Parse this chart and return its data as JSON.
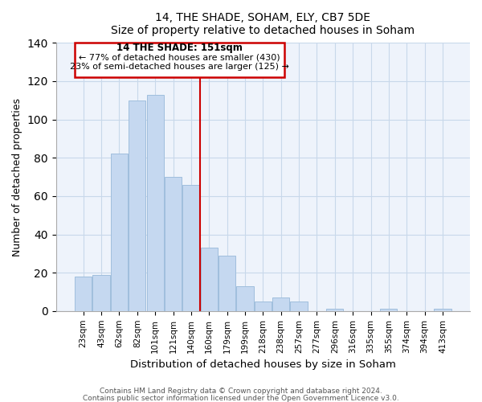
{
  "title": "14, THE SHADE, SOHAM, ELY, CB7 5DE",
  "subtitle": "Size of property relative to detached houses in Soham",
  "xlabel": "Distribution of detached houses by size in Soham",
  "ylabel": "Number of detached properties",
  "bar_labels": [
    "23sqm",
    "43sqm",
    "62sqm",
    "82sqm",
    "101sqm",
    "121sqm",
    "140sqm",
    "160sqm",
    "179sqm",
    "199sqm",
    "218sqm",
    "238sqm",
    "257sqm",
    "277sqm",
    "296sqm",
    "316sqm",
    "335sqm",
    "355sqm",
    "374sqm",
    "394sqm",
    "413sqm"
  ],
  "bar_values": [
    18,
    19,
    82,
    110,
    113,
    70,
    66,
    33,
    29,
    13,
    5,
    7,
    5,
    0,
    1,
    0,
    0,
    1,
    0,
    0,
    1
  ],
  "bar_color": "#c5d8f0",
  "bar_edge_color": "#a0bedd",
  "ylim": [
    0,
    140
  ],
  "yticks": [
    0,
    20,
    40,
    60,
    80,
    100,
    120,
    140
  ],
  "annotation_title": "14 THE SHADE: 151sqm",
  "annotation_line1": "← 77% of detached houses are smaller (430)",
  "annotation_line2": "23% of semi-detached houses are larger (125) →",
  "annotation_box_edge": "#cc0000",
  "property_line_color": "#cc0000",
  "property_line_x": 7.5,
  "footer1": "Contains HM Land Registry data © Crown copyright and database right 2024.",
  "footer2": "Contains public sector information licensed under the Open Government Licence v3.0.",
  "bg_color": "#eef3fb",
  "grid_color": "#c8d8ea"
}
